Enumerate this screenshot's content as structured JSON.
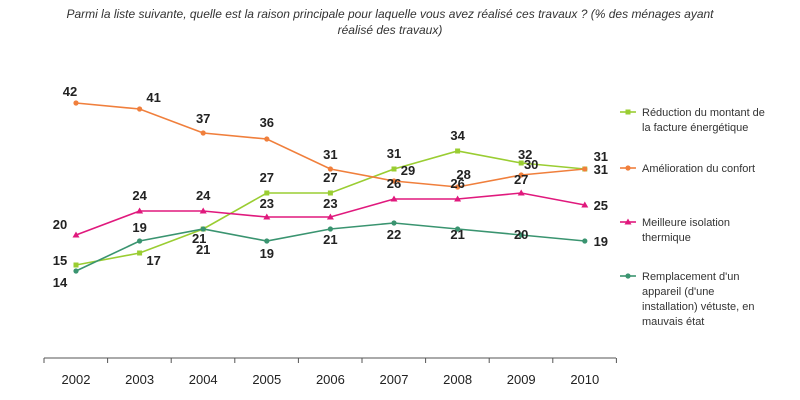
{
  "chart_data": {
    "type": "line",
    "title": "Parmi la liste suivante, quelle est la raison principale pour laquelle vous avez réalisé ces travaux ? (% des ménages ayant réalisé des travaux)",
    "title_lines": [
      "Parmi la liste suivante, quelle est la raison principale pour laquelle vous avez réalisé ces travaux ? (% des ménages ayant",
      "réalisé des travaux)"
    ],
    "x": [
      "2002",
      "2003",
      "2004",
      "2005",
      "2006",
      "2007",
      "2008",
      "2009",
      "2010"
    ],
    "xlabel": "",
    "ylabel": "",
    "ylim": [
      10,
      45
    ],
    "grid": false,
    "legend_position": "right",
    "series": [
      {
        "name": "Réduction du montant de la facture énergétique",
        "legend_lines": [
          "Réduction du montant de",
          "la facture énergétique"
        ],
        "values": [
          15,
          17,
          21,
          27,
          27,
          31,
          34,
          32,
          31
        ],
        "color": "#9ACD32",
        "marker": "square"
      },
      {
        "name": "Amélioration du confort",
        "legend_lines": [
          "Amélioration du confort"
        ],
        "values": [
          42,
          41,
          37,
          36,
          31,
          29,
          28,
          30,
          31
        ],
        "color": "#F07F3C",
        "marker": "circle"
      },
      {
        "name": "Meilleure isolation thermique",
        "legend_lines": [
          "Meilleure isolation",
          "thermique"
        ],
        "values": [
          20,
          24,
          24,
          23,
          23,
          26,
          26,
          27,
          25
        ],
        "color": "#E0197D",
        "marker": "triangle"
      },
      {
        "name": "Remplacement d'un appareil (d'une installation) vétuste, en mauvais état",
        "legend_lines": [
          "Remplacement d'un",
          "appareil (d'une",
          "installation) vétuste, en",
          "mauvais état"
        ],
        "values": [
          14,
          19,
          21,
          19,
          21,
          22,
          21,
          20,
          19
        ],
        "color": "#3A9470",
        "marker": "circle"
      }
    ]
  }
}
